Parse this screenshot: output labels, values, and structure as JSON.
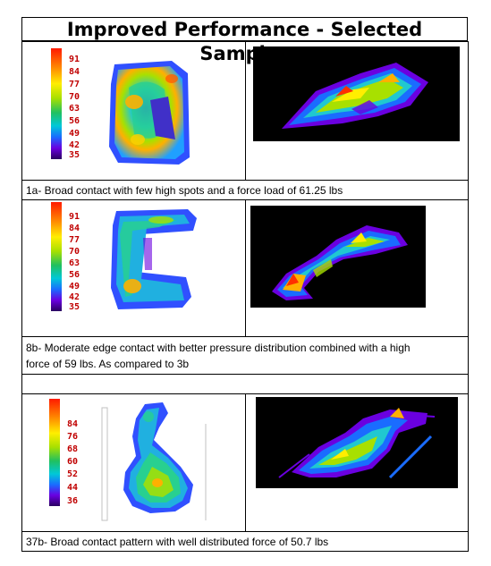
{
  "title": "Improved Performance - Selected Samples",
  "samples": [
    {
      "caption": "1a- Broad contact with few high spots and a force load of 61.25 lbs",
      "legend": [
        "91",
        "84",
        "77",
        "70",
        "63",
        "56",
        "49",
        "42",
        "35"
      ]
    },
    {
      "caption_line1": "8b- Moderate edge contact with better pressure distribution combined with a high",
      "caption_line2": "force of 59 lbs. As compared to 3b",
      "legend": [
        "91",
        "84",
        "77",
        "70",
        "63",
        "56",
        "49",
        "42",
        "35"
      ]
    },
    {
      "caption": "37b- Broad contact pattern with well distributed force of 50.7 lbs",
      "legend": [
        "84",
        "76",
        "68",
        "60",
        "52",
        "44",
        "36"
      ]
    }
  ]
}
